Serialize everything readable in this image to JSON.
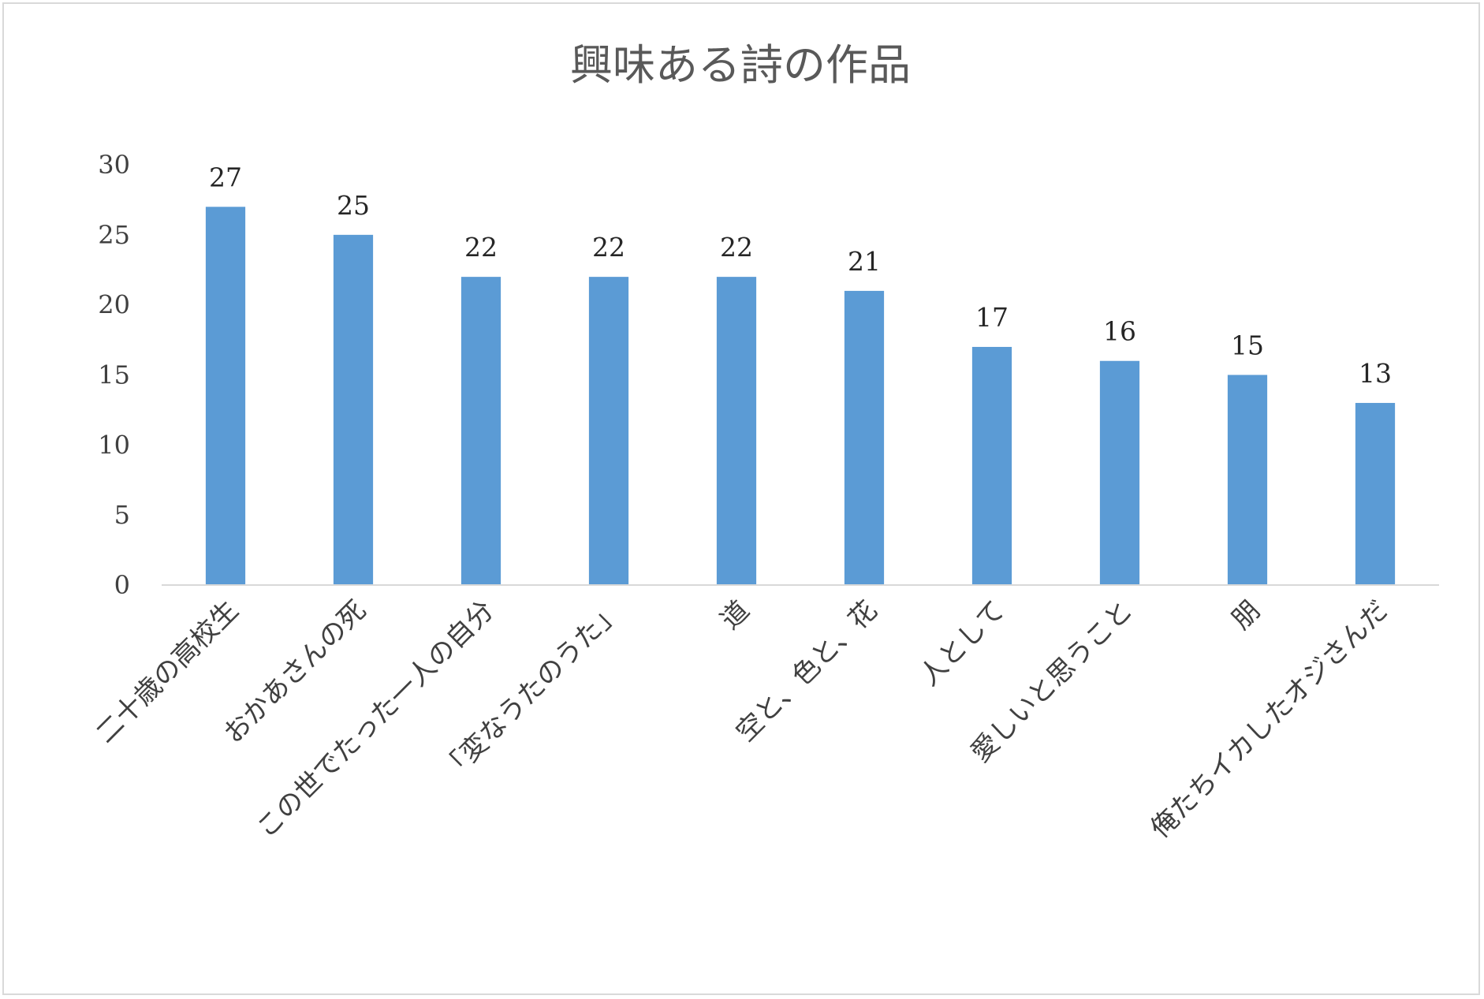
{
  "chart_data": {
    "type": "bar",
    "title": "興味ある詩の作品",
    "xlabel": "",
    "ylabel": "",
    "categories": [
      "二十歳の高校生",
      "おかあさんの死",
      "この世でたった一人の自分",
      "「変なうたのうた」",
      "道",
      "空と、色と、花",
      "人として",
      "愛しいと思うこと",
      "朋",
      "俺たちイカしたオジさんだ"
    ],
    "values": [
      27,
      25,
      22,
      22,
      22,
      21,
      17,
      16,
      15,
      13
    ],
    "ylim": [
      0,
      30
    ],
    "yticks": [
      0,
      5,
      10,
      15,
      20,
      25,
      30
    ],
    "grid": false,
    "legend": "none",
    "data_labels": true,
    "colors": {
      "bar": "#5b9bd5",
      "axis": "#d9d9d9",
      "border": "#d9d9d9",
      "title": "#595959",
      "text": "#404040"
    }
  }
}
